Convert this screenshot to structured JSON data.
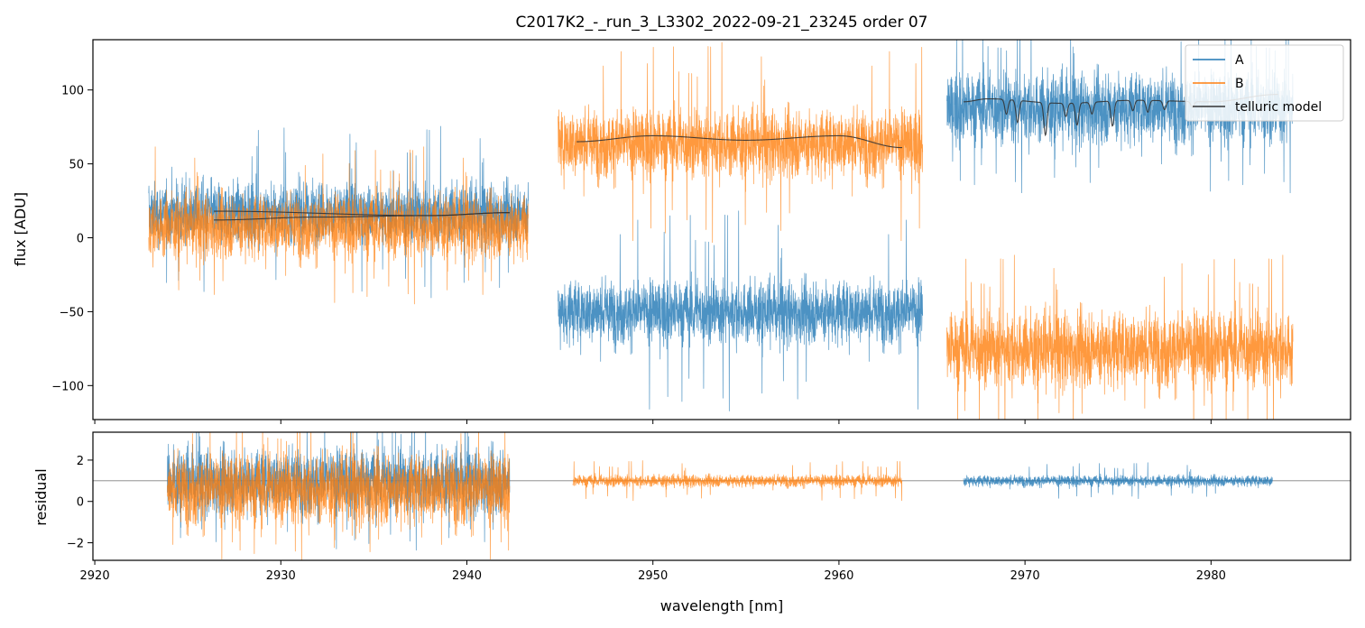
{
  "chart_data": {
    "type": "line",
    "title": "C2017K2_-_run_3_L3302_2022-09-21_23245  order 07",
    "xlabel": "wavelength [nm]",
    "xlim": [
      2919.9,
      2987.5
    ],
    "x_ticks": [
      2920,
      2930,
      2940,
      2950,
      2960,
      2970,
      2980
    ],
    "x_tick_labels": [
      "2920",
      "2930",
      "2940",
      "2950",
      "2960",
      "2970",
      "2980"
    ],
    "colors": {
      "A": "#1f77b4",
      "B": "#ff7f0e",
      "model": "#333333",
      "ref": "#808080"
    },
    "panels": [
      {
        "name": "flux",
        "ylabel": "flux [ADU]",
        "ylim": [
          -123,
          134
        ],
        "y_ticks": [
          -100,
          -50,
          0,
          50,
          100
        ],
        "y_tick_labels": [
          "−100",
          "−50",
          "0",
          "50",
          "100"
        ],
        "legend": {
          "placement": "top-right",
          "entries": [
            "A",
            "B",
            "telluric model"
          ]
        },
        "series": [
          {
            "name": "A",
            "color": "#1f77b4",
            "kind": "noisy",
            "segments": [
              {
                "x": [
                  2922.9,
                  2943.3
                ],
                "level": 17,
                "sigma": 14,
                "spike": 60
              },
              {
                "x": [
                  2944.9,
                  2964.5
                ],
                "level": -50,
                "sigma": 15,
                "spike": 70
              },
              {
                "x": [
                  2965.8,
                  2984.4
                ],
                "level": 88,
                "sigma": 17,
                "spike": 60
              }
            ]
          },
          {
            "name": "B",
            "color": "#ff7f0e",
            "kind": "noisy",
            "segments": [
              {
                "x": [
                  2922.9,
                  2943.3
                ],
                "level": 8,
                "sigma": 15,
                "spike": 55
              },
              {
                "x": [
                  2944.9,
                  2964.5
                ],
                "level": 64,
                "sigma": 16,
                "spike": 70
              },
              {
                "x": [
                  2965.8,
                  2984.4
                ],
                "level": -75,
                "sigma": 18,
                "spike": 65
              }
            ]
          },
          {
            "name": "telluric model",
            "color": "#333333",
            "kind": "model",
            "segments": [
              {
                "x": [
                  2926.4,
                  2938.0,
                  2942.3
                ],
                "y": [
                  18,
                  15,
                  17
                ]
              },
              {
                "x": [
                  2926.4,
                  2932.0,
                  2938.0,
                  2942.3
                ],
                "y": [
                  12,
                  14,
                  15,
                  17
                ]
              },
              {
                "x": [
                  2945.9,
                  2950.0,
                  2955.0,
                  2960.0,
                  2963.4
                ],
                "y": [
                  65,
                  69,
                  66,
                  69,
                  61
                ]
              },
              {
                "x": [
                  2966.7,
                  2968.0,
                  2972.0,
                  2976.0,
                  2980.0,
                  2983.6
                ],
                "y": [
                  92,
                  94,
                  91,
                  93,
                  92,
                  97
                ]
              }
            ],
            "absorption_lines": [
              {
                "x": 2969.0,
                "depth": 10
              },
              {
                "x": 2969.6,
                "depth": 15
              },
              {
                "x": 2971.1,
                "depth": 22
              },
              {
                "x": 2972.2,
                "depth": 9
              },
              {
                "x": 2972.8,
                "depth": 15
              },
              {
                "x": 2973.6,
                "depth": 8
              },
              {
                "x": 2974.7,
                "depth": 17
              },
              {
                "x": 2975.8,
                "depth": 7
              },
              {
                "x": 2976.6,
                "depth": 8
              },
              {
                "x": 2977.5,
                "depth": 6
              },
              {
                "x": 2979.0,
                "depth": 4
              }
            ]
          }
        ]
      },
      {
        "name": "residual",
        "ylabel": "residual",
        "ylim": [
          -2.85,
          3.35
        ],
        "y_ticks": [
          -2,
          0,
          2
        ],
        "y_tick_labels": [
          "−2",
          "0",
          "2"
        ],
        "reference_line": 1,
        "series": [
          {
            "name": "A",
            "color": "#1f77b4",
            "kind": "noisy",
            "segments": [
              {
                "x": [
                  2923.9,
                  2942.3
                ],
                "level": 1.0,
                "sigma": 1.1,
                "spike": 3.5
              },
              {
                "x": [
                  2966.7,
                  2983.3
                ],
                "level": 1.0,
                "sigma": 0.18,
                "spike": 0.9
              }
            ]
          },
          {
            "name": "B",
            "color": "#ff7f0e",
            "kind": "noisy",
            "segments": [
              {
                "x": [
                  2923.9,
                  2942.3
                ],
                "level": 0.6,
                "sigma": 1.2,
                "spike": 3.6
              },
              {
                "x": [
                  2945.7,
                  2963.4
                ],
                "level": 1.0,
                "sigma": 0.2,
                "spike": 1.0
              }
            ]
          }
        ]
      }
    ]
  }
}
